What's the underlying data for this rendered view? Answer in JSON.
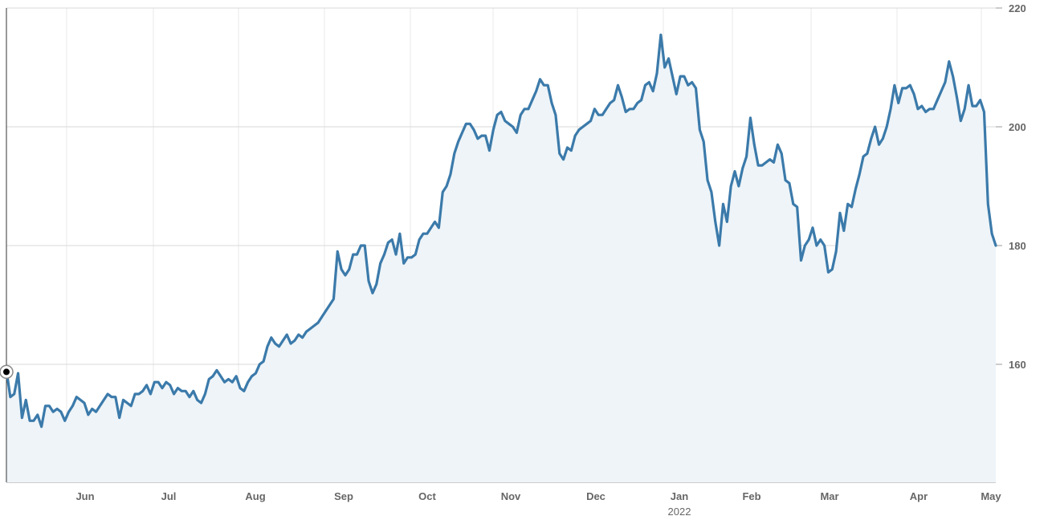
{
  "chart_data": {
    "type": "area",
    "title": "",
    "xlabel": "",
    "ylabel": "",
    "ylim": [
      140,
      220
    ],
    "y_ticks": [
      160,
      180,
      200,
      220
    ],
    "x_ticks": [
      "Jun",
      "Jul",
      "Aug",
      "Sep",
      "Oct",
      "Nov",
      "Dec",
      "Jan",
      "Feb",
      "Mar",
      "Apr",
      "May"
    ],
    "year_label": "2022",
    "grid": true,
    "y_axis_side": "right",
    "colors": {
      "line": "#3b7aaa",
      "fill": "#eef4f8",
      "grid": "#d9d9d9",
      "text": "#666666"
    },
    "series": [
      {
        "values": [
          159.0,
          154.5,
          155.0,
          158.5,
          151.0,
          154.0,
          150.5,
          150.5,
          151.5,
          149.5,
          153.0,
          153.0,
          152.0,
          152.5,
          152.0,
          150.5,
          152.0,
          153.0,
          154.5,
          154.0,
          153.5,
          151.5,
          152.5,
          152.0,
          153.0,
          154.0,
          155.0,
          154.5,
          154.5,
          151.0,
          154.0,
          153.5,
          153.0,
          155.0,
          155.0,
          155.5,
          156.5,
          155.0,
          157.0,
          157.0,
          156.0,
          157.0,
          156.5,
          155.0,
          156.0,
          155.5,
          155.5,
          154.5,
          155.5,
          154.0,
          153.5,
          155.0,
          157.5,
          158.0,
          159.0,
          158.0,
          157.0,
          157.5,
          157.0,
          158.0,
          156.0,
          155.5,
          157.0,
          158.0,
          158.5,
          160.0,
          160.5,
          163.0,
          164.5,
          163.5,
          163.0,
          164.0,
          165.0,
          163.5,
          164.0,
          165.0,
          164.5,
          165.5,
          166.0,
          166.5,
          167.0,
          168.0,
          169.0,
          170.0,
          171.0,
          179.0,
          176.0,
          175.0,
          176.0,
          178.5,
          178.5,
          180.0,
          180.0,
          174.0,
          172.0,
          173.5,
          177.0,
          178.5,
          180.5,
          181.0,
          178.5,
          182.0,
          177.0,
          178.0,
          178.0,
          178.5,
          181.0,
          182.0,
          182.0,
          183.0,
          184.0,
          183.0,
          189.0,
          190.0,
          192.0,
          195.5,
          197.5,
          199.0,
          200.5,
          200.5,
          199.5,
          198.0,
          198.5,
          198.5,
          196.0,
          199.5,
          202.0,
          202.5,
          201.0,
          200.5,
          200.0,
          199.0,
          202.0,
          203.0,
          203.0,
          204.5,
          206.0,
          208.0,
          207.0,
          207.0,
          204.0,
          202.0,
          195.5,
          194.5,
          196.5,
          196.0,
          198.5,
          199.5,
          200.0,
          200.5,
          201.0,
          203.0,
          202.0,
          202.0,
          203.0,
          204.0,
          204.5,
          207.0,
          205.0,
          202.5,
          203.0,
          203.0,
          204.0,
          204.5,
          207.0,
          207.5,
          206.0,
          209.0,
          215.5,
          210.0,
          211.5,
          208.5,
          205.5,
          208.5,
          208.5,
          207.0,
          207.5,
          206.5,
          199.5,
          197.5,
          191.0,
          189.0,
          184.0,
          180.0,
          187.0,
          184.0,
          190.0,
          192.5,
          190.0,
          193.0,
          195.0,
          201.5,
          197.0,
          193.5,
          193.5,
          194.0,
          194.5,
          194.0,
          197.0,
          195.5,
          191.0,
          190.5,
          187.0,
          186.5,
          177.5,
          180.0,
          181.0,
          183.0,
          180.0,
          181.0,
          180.0,
          175.5,
          176.0,
          179.0,
          185.5,
          182.5,
          187.0,
          186.5,
          189.5,
          192.0,
          195.0,
          195.5,
          198.0,
          200.0,
          197.0,
          198.0,
          200.0,
          203.0,
          207.0,
          204.0,
          206.5,
          206.5,
          207.0,
          205.5,
          203.0,
          203.5,
          202.5,
          203.0,
          203.0,
          204.5,
          206.0,
          207.5,
          211.0,
          208.5,
          205.0,
          201.0,
          203.0,
          207.0,
          203.5,
          203.5,
          204.5,
          202.5,
          187.0,
          182.0,
          180.0
        ]
      }
    ]
  }
}
